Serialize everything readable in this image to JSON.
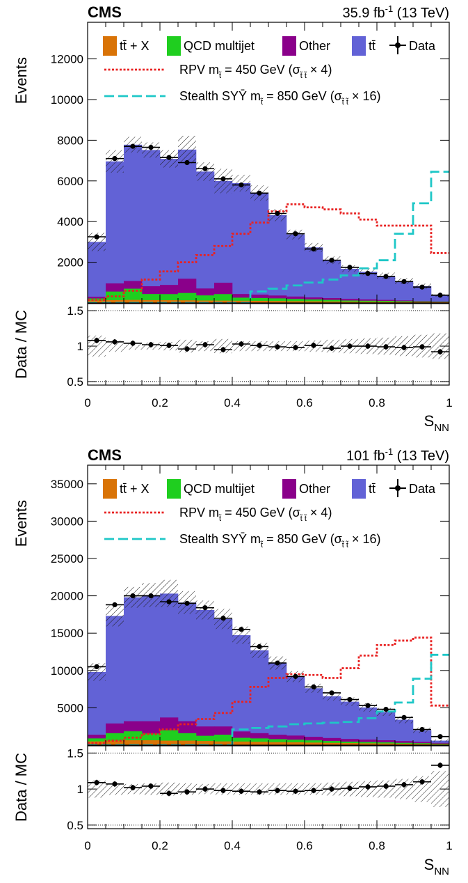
{
  "chart_data": [
    {
      "type": "bar",
      "experiment": "CMS",
      "lumi_text": "35.9 fb",
      "lumi_sup": "-1",
      "energy_text": "(13 TeV)",
      "ylabel": "Events",
      "ratio_ylabel": "Data / MC",
      "xlabel": "S",
      "xlabel_sub": "NN",
      "xlim": [
        0,
        1
      ],
      "ylim": [
        0,
        13800
      ],
      "ratio_ylim": [
        0.45,
        1.6
      ],
      "yticks": [
        2000,
        4000,
        6000,
        8000,
        10000,
        12000
      ],
      "ytick_labels": [
        "2000",
        "4000",
        "6000",
        "8000",
        "10000",
        "12000"
      ],
      "ratio_yticks": [
        0.5,
        1,
        1.5
      ],
      "ratio_ytick_labels": [
        "0.5",
        "1",
        "1.5"
      ],
      "xticks": [
        0,
        0.2,
        0.4,
        0.6,
        0.8,
        1
      ],
      "xtick_labels": [
        "0",
        "0.2",
        "0.4",
        "0.6",
        "0.8",
        "1"
      ],
      "bin_edges": [
        0,
        0.05,
        0.1,
        0.15,
        0.2,
        0.25,
        0.3,
        0.35,
        0.4,
        0.45,
        0.5,
        0.55,
        0.6,
        0.65,
        0.7,
        0.75,
        0.8,
        0.85,
        0.9,
        0.95,
        1.0
      ],
      "series": [
        {
          "name": "tt̄ + X",
          "role": "stack",
          "color": "#d97306",
          "values": [
            120,
            140,
            150,
            140,
            135,
            130,
            120,
            115,
            110,
            105,
            95,
            85,
            80,
            70,
            60,
            55,
            50,
            45,
            40,
            35
          ]
        },
        {
          "name": "QCD multijet",
          "role": "stack",
          "color": "#1fce1f",
          "values": [
            100,
            420,
            550,
            300,
            300,
            360,
            250,
            320,
            150,
            140,
            130,
            110,
            90,
            80,
            60,
            55,
            50,
            40,
            30,
            20
          ]
        },
        {
          "name": "Other",
          "role": "stack",
          "color": "#8a008a",
          "values": [
            80,
            400,
            380,
            380,
            450,
            700,
            340,
            560,
            180,
            160,
            140,
            120,
            100,
            90,
            80,
            60,
            50,
            40,
            30,
            20
          ]
        },
        {
          "name": "tt̄",
          "role": "stack",
          "color": "#6262d6",
          "values": [
            2700,
            6000,
            6700,
            6700,
            6200,
            6350,
            5750,
            5000,
            5450,
            5000,
            3950,
            3050,
            2460,
            1860,
            1480,
            1360,
            1180,
            950,
            720,
            300
          ]
        },
        {
          "name": "Data",
          "role": "data",
          "values": [
            3250,
            7100,
            7700,
            7650,
            7150,
            6900,
            6600,
            6100,
            5800,
            5400,
            4400,
            3400,
            2650,
            2100,
            1750,
            1450,
            1300,
            1050,
            780,
            380
          ]
        },
        {
          "name": "RPV m",
          "label_suffix": " = 450 GeV (σ",
          "label_scale": " × 4)",
          "role": "signal",
          "color": "#e82222",
          "style": "dotted",
          "values": [
            150,
            320,
            600,
            1150,
            1550,
            2000,
            2350,
            2800,
            3400,
            3950,
            4500,
            4850,
            4700,
            4600,
            4400,
            4100,
            3800,
            3800,
            3800,
            2450
          ]
        },
        {
          "name": "Stealth SYȲ m",
          "label_suffix": " = 850 GeV (σ",
          "label_scale": " × 16)",
          "role": "signal",
          "color": "#1ec7c7",
          "style": "dashed",
          "values": [
            0,
            0,
            0,
            0,
            0,
            0,
            0,
            0,
            0,
            560,
            700,
            860,
            1000,
            1150,
            1350,
            1700,
            2100,
            3400,
            4900,
            6450
          ]
        }
      ],
      "ratio": {
        "values": [
          1.08,
          1.06,
          1.04,
          1.02,
          1.01,
          0.96,
          1.02,
          0.95,
          1.03,
          1.01,
          0.99,
          0.98,
          1.01,
          0.97,
          1.0,
          1.0,
          0.99,
          0.98,
          0.99,
          0.92
        ]
      },
      "unc_frac": [
        0.15,
        0.08,
        0.05,
        0.05,
        0.06,
        0.09,
        0.07,
        0.1,
        0.07,
        0.07,
        0.07,
        0.07,
        0.08,
        0.09,
        0.1,
        0.11,
        0.12,
        0.14,
        0.16,
        0.18
      ],
      "legend_position": "top"
    },
    {
      "type": "bar",
      "experiment": "CMS",
      "lumi_text": "101 fb",
      "lumi_sup": "-1",
      "energy_text": "(13 TeV)",
      "ylabel": "Events",
      "ratio_ylabel": "Data / MC",
      "xlabel": "S",
      "xlabel_sub": "NN",
      "xlim": [
        0,
        1
      ],
      "ylim": [
        0,
        37500
      ],
      "ratio_ylim": [
        0.45,
        1.6
      ],
      "yticks": [
        5000,
        10000,
        15000,
        20000,
        25000,
        30000,
        35000
      ],
      "ytick_labels": [
        "5000",
        "10000",
        "15000",
        "20000",
        "25000",
        "30000",
        "35000"
      ],
      "ratio_yticks": [
        0.5,
        1,
        1.5
      ],
      "ratio_ytick_labels": [
        "0.5",
        "1",
        "1.5"
      ],
      "xticks": [
        0,
        0.2,
        0.4,
        0.6,
        0.8,
        1
      ],
      "xtick_labels": [
        "0",
        "0.2",
        "0.4",
        "0.6",
        "0.8",
        "1"
      ],
      "bin_edges": [
        0,
        0.05,
        0.1,
        0.15,
        0.2,
        0.25,
        0.3,
        0.35,
        0.4,
        0.45,
        0.5,
        0.55,
        0.6,
        0.65,
        0.7,
        0.75,
        0.8,
        0.85,
        0.9,
        0.95,
        1.0
      ],
      "series": [
        {
          "name": "tt̄ + X",
          "role": "stack",
          "color": "#d97306",
          "values": [
            500,
            600,
            650,
            650,
            600,
            600,
            550,
            500,
            480,
            450,
            400,
            380,
            340,
            300,
            270,
            240,
            220,
            190,
            160,
            120
          ]
        },
        {
          "name": "QCD multijet",
          "role": "stack",
          "color": "#1fce1f",
          "values": [
            400,
            1000,
            1200,
            900,
            1400,
            1000,
            700,
            900,
            500,
            450,
            400,
            350,
            300,
            250,
            200,
            180,
            150,
            120,
            100,
            80
          ]
        },
        {
          "name": "Other",
          "role": "stack",
          "color": "#8a008a",
          "values": [
            500,
            1300,
            1350,
            1650,
            1700,
            1600,
            1250,
            1100,
            850,
            700,
            600,
            550,
            480,
            400,
            350,
            320,
            280,
            230,
            180,
            100
          ]
        },
        {
          "name": "tt̄",
          "role": "stack",
          "color": "#6262d6",
          "values": [
            8400,
            14400,
            16600,
            16900,
            16600,
            15900,
            15600,
            14400,
            12900,
            11100,
            9600,
            7900,
            6500,
            5600,
            5000,
            4300,
            3800,
            2860,
            1560,
            300
          ]
        },
        {
          "name": "Data",
          "role": "data",
          "values": [
            10500,
            18800,
            20000,
            20000,
            19200,
            19000,
            18400,
            17000,
            15500,
            13200,
            11000,
            9200,
            7800,
            7000,
            6100,
            5300,
            4800,
            3700,
            2100,
            1150
          ]
        },
        {
          "name": "RPV m",
          "label_suffix": " = 450 GeV (σ",
          "label_scale": " × 4)",
          "role": "signal",
          "color": "#e82222",
          "style": "dotted",
          "values": [
            250,
            600,
            1000,
            1500,
            2100,
            2800,
            3500,
            4300,
            5800,
            7800,
            9000,
            9500,
            9400,
            9000,
            10300,
            12000,
            13400,
            14000,
            14400,
            5300
          ]
        },
        {
          "name": "Stealth SYȲ m",
          "label_suffix": " = 850 GeV (σ",
          "label_scale": " × 16)",
          "role": "signal",
          "color": "#1ec7c7",
          "style": "dashed",
          "values": [
            0,
            0,
            0,
            0,
            0,
            0,
            0,
            0,
            2100,
            2300,
            2500,
            2800,
            2900,
            3000,
            3100,
            3600,
            4500,
            5700,
            8900,
            12100
          ]
        }
      ],
      "ratio": {
        "values": [
          1.09,
          1.07,
          1.02,
          1.04,
          0.94,
          0.96,
          1.0,
          0.98,
          0.97,
          0.96,
          0.98,
          0.97,
          0.98,
          1.0,
          1.01,
          1.03,
          1.04,
          1.06,
          1.1,
          1.33
        ]
      },
      "unc_frac": [
        0.12,
        0.08,
        0.07,
        0.08,
        0.09,
        0.08,
        0.07,
        0.08,
        0.08,
        0.08,
        0.08,
        0.08,
        0.08,
        0.09,
        0.1,
        0.11,
        0.12,
        0.14,
        0.18,
        0.25
      ],
      "legend_position": "top"
    }
  ]
}
